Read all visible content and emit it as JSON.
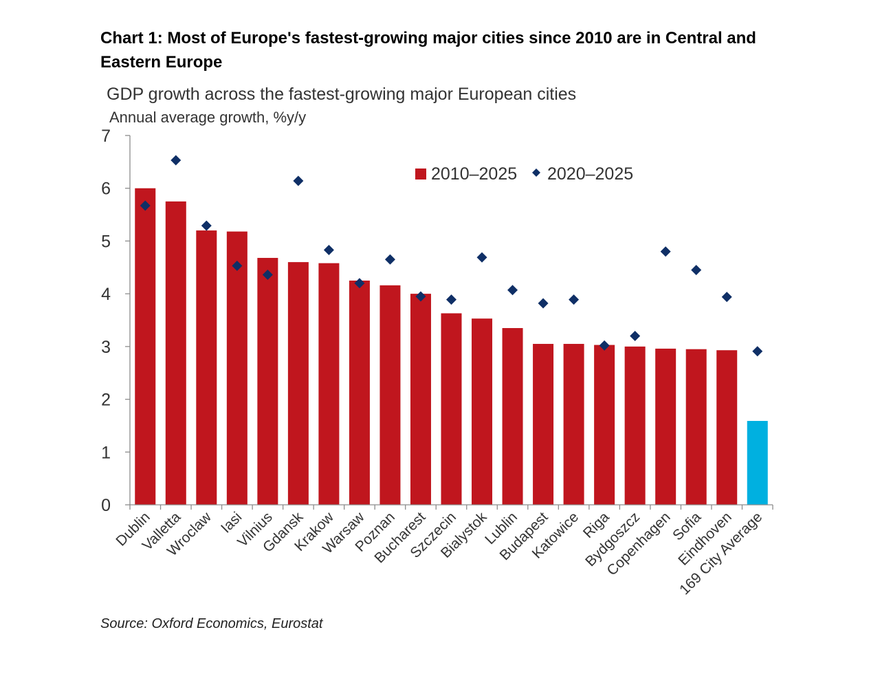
{
  "chart_data": {
    "type": "bar",
    "title": "Chart 1: Most of Europe's fastest-growing major cities since 2010 are in Central and Eastern Europe",
    "subtitle": "GDP growth across the fastest-growing major European cities",
    "ylabel": "Annual average growth, %y/y",
    "xlabel": "",
    "ylim": [
      0,
      7
    ],
    "yticks": [
      "0",
      "1",
      "2",
      "3",
      "4",
      "5",
      "6",
      "7"
    ],
    "categories": [
      "Dublin",
      "Valletta",
      "Wroclaw",
      "Iasi",
      "Vilnius",
      "Gdansk",
      "Krakow",
      "Warsaw",
      "Poznan",
      "Bucharest",
      "Szczecin",
      "Bialystok",
      "Lublin",
      "Budapest",
      "Katowice",
      "Riga",
      "Bydgoszcz",
      "Copenhagen",
      "Sofia",
      "Eindhoven",
      "169 City Average"
    ],
    "series": [
      {
        "name": "2010–2025",
        "type": "bar",
        "color": "#C0161E",
        "highlight_color": "#00B0E0",
        "highlight_index": 20,
        "values": [
          6.0,
          5.75,
          5.2,
          5.18,
          4.68,
          4.6,
          4.58,
          4.25,
          4.16,
          4.0,
          3.63,
          3.53,
          3.35,
          3.05,
          3.05,
          3.03,
          3.0,
          2.96,
          2.95,
          2.93,
          1.59
        ]
      },
      {
        "name": "2020–2025",
        "type": "scatter",
        "marker": "diamond",
        "color": "#0F2F66",
        "values": [
          5.67,
          6.53,
          5.29,
          4.53,
          4.36,
          6.14,
          4.83,
          4.2,
          4.65,
          3.95,
          3.89,
          4.69,
          4.07,
          3.82,
          3.89,
          3.02,
          3.2,
          4.8,
          4.45,
          3.94,
          2.91
        ]
      }
    ],
    "legend": "top-right",
    "grid": false,
    "source": "Source: Oxford Economics, Eurostat"
  }
}
